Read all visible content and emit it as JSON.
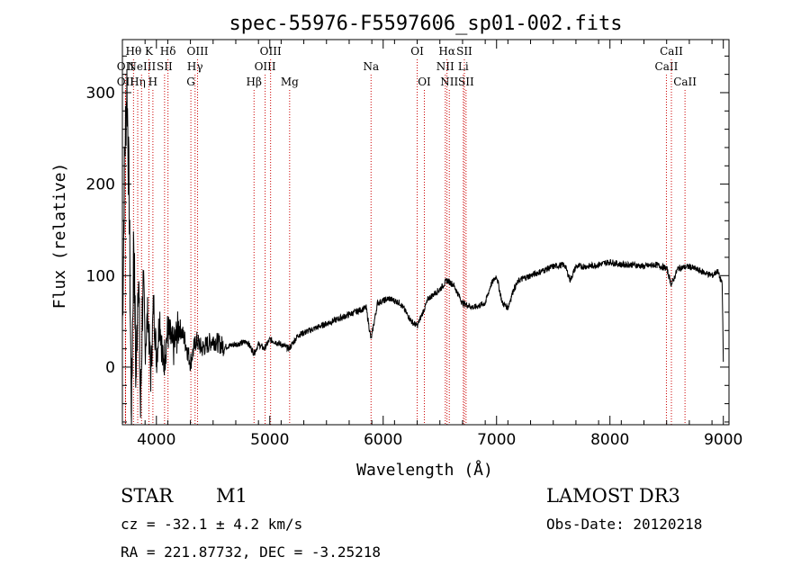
{
  "chart_data": {
    "type": "line",
    "title": "spec-55976-F5597606_sp01-002.fits",
    "xlabel": "Wavelength (Å)",
    "ylabel": "Flux (relative)",
    "xlim": [
      3700,
      9050
    ],
    "ylim": [
      -63,
      358
    ],
    "x_ticks": [
      4000,
      5000,
      6000,
      7000,
      8000,
      9000
    ],
    "y_ticks": [
      0,
      100,
      200,
      300
    ],
    "grid": false,
    "series": [
      {
        "color": "#000000",
        "x": [
          3700,
          3720,
          3740,
          3760,
          3780,
          3800,
          3820,
          3840,
          3860,
          3880,
          3900,
          3925,
          3950,
          3975,
          4000,
          4030,
          4060,
          4100,
          4150,
          4200,
          4250,
          4300,
          4350,
          4400,
          4450,
          4500,
          4600,
          4700,
          4800,
          4861,
          4900,
          4950,
          5000,
          5100,
          5170,
          5250,
          5350,
          5450,
          5550,
          5650,
          5750,
          5850,
          5893,
          5950,
          6050,
          6150,
          6250,
          6300,
          6400,
          6500,
          6563,
          6620,
          6700,
          6800,
          6900,
          6950,
          7000,
          7050,
          7100,
          7150,
          7200,
          7300,
          7400,
          7500,
          7600,
          7650,
          7700,
          7800,
          7900,
          8000,
          8100,
          8200,
          8300,
          8400,
          8500,
          8542,
          8600,
          8700,
          8800,
          8900,
          8950,
          8990,
          9000
        ],
        "y": [
          45,
          230,
          310,
          180,
          -60,
          150,
          -20,
          120,
          -50,
          90,
          20,
          60,
          -10,
          70,
          10,
          55,
          0,
          40,
          20,
          45,
          30,
          5,
          30,
          20,
          25,
          30,
          22,
          25,
          28,
          15,
          25,
          20,
          30,
          25,
          20,
          35,
          40,
          45,
          50,
          55,
          60,
          65,
          30,
          70,
          75,
          70,
          50,
          45,
          75,
          85,
          95,
          90,
          70,
          65,
          70,
          90,
          100,
          70,
          65,
          85,
          95,
          100,
          105,
          110,
          112,
          95,
          110,
          110,
          112,
          115,
          112,
          112,
          110,
          112,
          108,
          90,
          108,
          110,
          105,
          100,
          105,
          90,
          5
        ]
      }
    ],
    "line_markers": [
      {
        "wavelength": 3727,
        "label": "OII",
        "row": 2
      },
      {
        "wavelength": 3727,
        "label": "OII",
        "row": 3
      },
      {
        "wavelength": 3798,
        "label": "Hθ",
        "row": 1
      },
      {
        "wavelength": 3835,
        "label": "Hη",
        "row": 3
      },
      {
        "wavelength": 3869,
        "label": "NeIII",
        "row": 2
      },
      {
        "wavelength": 3934,
        "label": "K",
        "row": 1
      },
      {
        "wavelength": 3969,
        "label": "H",
        "row": 3
      },
      {
        "wavelength": 4072,
        "label": "SII",
        "row": 2
      },
      {
        "wavelength": 4102,
        "label": "Hδ",
        "row": 1
      },
      {
        "wavelength": 4304,
        "label": "G",
        "row": 3
      },
      {
        "wavelength": 4341,
        "label": "Hγ",
        "row": 2
      },
      {
        "wavelength": 4363,
        "label": "OIII",
        "row": 1
      },
      {
        "wavelength": 4861,
        "label": "Hβ",
        "row": 3
      },
      {
        "wavelength": 4959,
        "label": "OIII",
        "row": 2
      },
      {
        "wavelength": 5007,
        "label": "OIII",
        "row": 1
      },
      {
        "wavelength": 5175,
        "label": "Mg",
        "row": 3
      },
      {
        "wavelength": 5893,
        "label": "Na",
        "row": 2
      },
      {
        "wavelength": 6300,
        "label": "OI",
        "row": 1
      },
      {
        "wavelength": 6363,
        "label": "OI",
        "row": 3
      },
      {
        "wavelength": 6548,
        "label": "NII",
        "row": 2
      },
      {
        "wavelength": 6563,
        "label": "Hα",
        "row": 1
      },
      {
        "wavelength": 6583,
        "label": "NII",
        "row": 3
      },
      {
        "wavelength": 6707,
        "label": "Li",
        "row": 2
      },
      {
        "wavelength": 6716,
        "label": "SII",
        "row": 1
      },
      {
        "wavelength": 6731,
        "label": "SII",
        "row": 3
      },
      {
        "wavelength": 8498,
        "label": "CaII",
        "row": 2
      },
      {
        "wavelength": 8542,
        "label": "CaII",
        "row": 1
      },
      {
        "wavelength": 8662,
        "label": "CaII",
        "row": 3
      }
    ],
    "marker_color": "#cc0000"
  },
  "info": {
    "object_class": "STAR",
    "subclass": "M1",
    "survey": "LAMOST DR3",
    "cz": "cz = -32.1 ± 4.2 km/s",
    "obs_date": "Obs-Date: 20120218",
    "coords": "RA = 221.87732, DEC =  -3.25218"
  }
}
